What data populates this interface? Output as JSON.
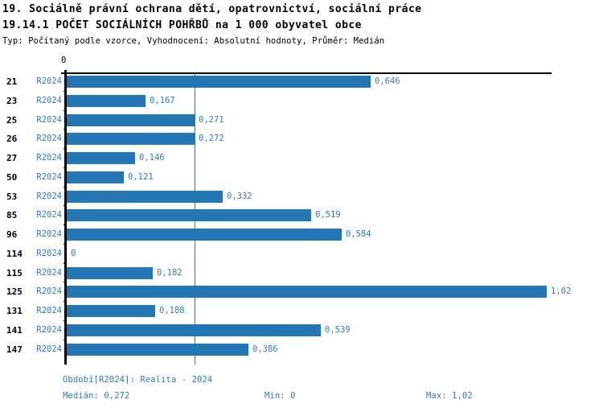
{
  "header": {
    "title": "19. Sociálně právní ochrana dětí, opatrovnictví, sociální práce",
    "subtitle": "19.14.1 POČET SOCIÁLNÍCH POHŘBŮ na 1 000 obyvatel obce",
    "meta": "Typ: Počítaný podle vzorce, Vyhodnocení: Absolutní hodnoty, Průměr: Medián"
  },
  "colors": {
    "bar": "#2277b4",
    "accent_text": "#2f7cba",
    "axis": "#000000"
  },
  "chart_data": {
    "type": "bar",
    "orientation": "horizontal",
    "title": "19.14.1 POČET SOCIÁLNÍCH POHŘBŮ na 1 000 obyvatel obce",
    "categories": [
      "21",
      "23",
      "25",
      "26",
      "27",
      "50",
      "53",
      "85",
      "96",
      "114",
      "115",
      "125",
      "131",
      "141",
      "147"
    ],
    "series_label": "R2024",
    "values": [
      0.646,
      0.167,
      0.271,
      0.272,
      0.146,
      0.121,
      0.332,
      0.519,
      0.584,
      0,
      0.182,
      1.02,
      0.188,
      0.539,
      0.386
    ],
    "value_labels": [
      "0,646",
      "0,167",
      "0,271",
      "0,272",
      "0,146",
      "0,121",
      "0,332",
      "0,519",
      "0,584",
      "0",
      "0,182",
      "1,02",
      "0,188",
      "0,539",
      "0,386"
    ],
    "xlim": [
      0,
      1.03
    ],
    "x_ticks": [
      "0"
    ],
    "grid": false,
    "legend_position": "none",
    "median_reference_line": 0.272,
    "median": 0.272,
    "min": 0,
    "max": 1.02
  },
  "footer": {
    "period": "Období[R2024]: Realita - 2024",
    "median": "Medián: 0,272",
    "min": "Min: 0",
    "max": "Max: 1,02"
  }
}
